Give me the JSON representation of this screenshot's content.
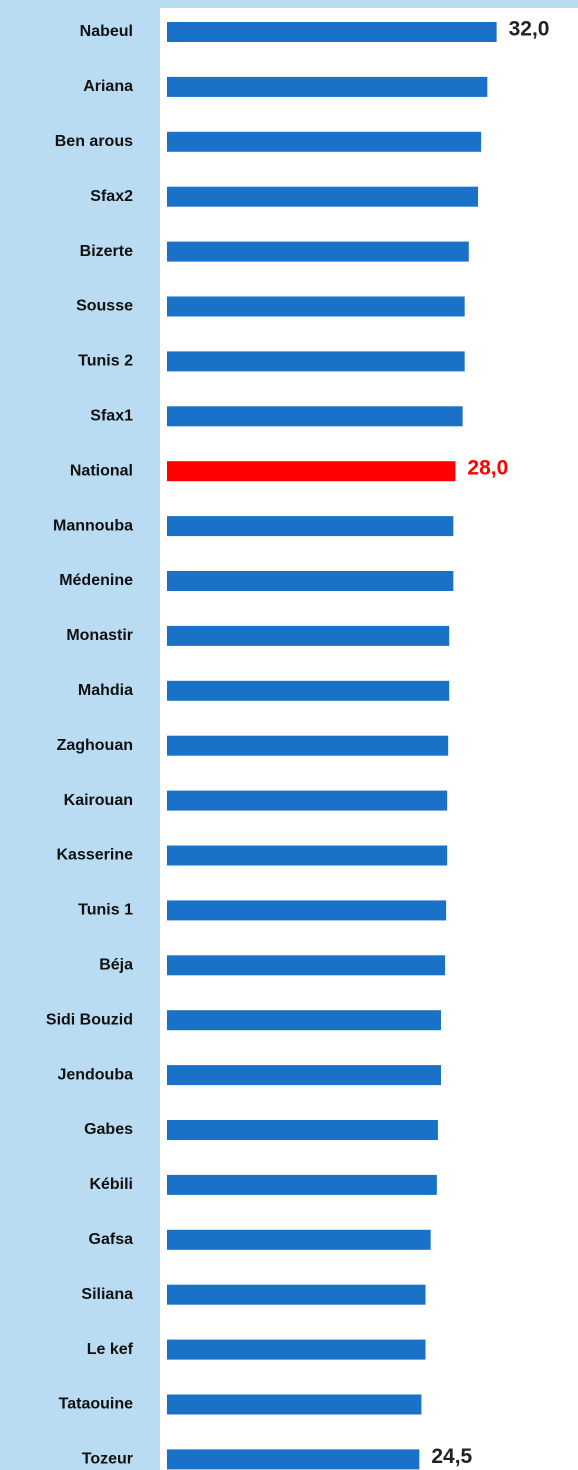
{
  "chart_data": {
    "type": "bar",
    "orientation": "horizontal",
    "categories": [
      "Nabeul",
      "Ariana",
      "Ben arous",
      "Sfax2",
      "Bizerte",
      "Sousse",
      "Tunis 2",
      "Sfax1",
      "National",
      "Mannouba",
      "Médenine",
      "Monastir",
      "Mahdia",
      "Zaghouan",
      "Kairouan",
      "Kasserine",
      "Tunis 1",
      "Béja",
      "Sidi Bouzid",
      "Jendouba",
      "Gabes",
      "Kébili",
      "Gafsa",
      "Siliana",
      "Le kef",
      "Tataouine",
      "Tozeur"
    ],
    "values": [
      32.0,
      31.1,
      30.5,
      30.2,
      29.3,
      28.9,
      28.9,
      28.7,
      28.0,
      27.8,
      27.8,
      27.4,
      27.4,
      27.3,
      27.2,
      27.2,
      27.1,
      27.0,
      26.6,
      26.6,
      26.3,
      26.2,
      25.6,
      25.1,
      25.1,
      24.7,
      24.5
    ],
    "value_labels": [
      "32,0",
      null,
      null,
      null,
      null,
      null,
      null,
      null,
      "28,0",
      null,
      null,
      null,
      null,
      null,
      null,
      null,
      null,
      null,
      null,
      null,
      null,
      null,
      null,
      null,
      null,
      null,
      "24,5"
    ],
    "color": "#1a72c8",
    "colors": [
      "#1a72c8",
      "#1a72c8",
      "#1a72c8",
      "#1a72c8",
      "#1a72c8",
      "#1a72c8",
      "#1a72c8",
      "#1a72c8",
      "#ff0000",
      "#1a72c8",
      "#1a72c8",
      "#1a72c8",
      "#1a72c8",
      "#1a72c8",
      "#1a72c8",
      "#1a72c8",
      "#1a72c8",
      "#1a72c8",
      "#1a72c8",
      "#1a72c8",
      "#1a72c8",
      "#1a72c8",
      "#1a72c8",
      "#1a72c8",
      "#1a72c8",
      "#1a72c8",
      "#1a72c8"
    ],
    "xlim": [
      0,
      40
    ]
  }
}
